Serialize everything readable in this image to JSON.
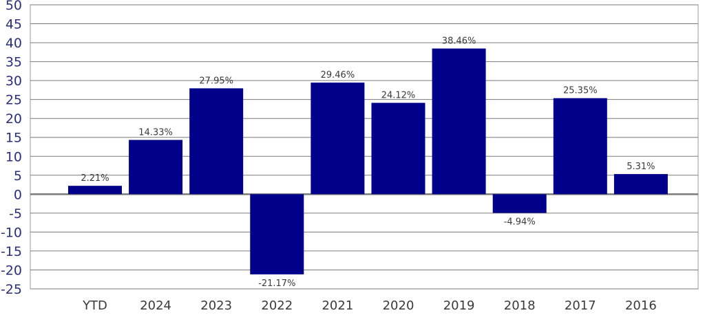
{
  "chart_data": {
    "type": "bar",
    "title": "",
    "xlabel": "",
    "ylabel": "",
    "categories": [
      "YTD",
      "2024",
      "2023",
      "2022",
      "2021",
      "2020",
      "2019",
      "2018",
      "2017",
      "2016"
    ],
    "values": [
      2.21,
      14.33,
      27.95,
      -21.17,
      29.46,
      24.12,
      38.46,
      -4.94,
      25.35,
      5.31
    ],
    "value_labels": [
      "2.21%",
      "14.33%",
      "27.95%",
      "-21.17%",
      "29.46%",
      "24.12%",
      "38.46%",
      "-4.94%",
      "25.35%",
      "5.31%"
    ],
    "ylim": [
      -25,
      50
    ],
    "y_ticks": [
      "50",
      "45",
      "40",
      "35",
      "30",
      "25",
      "20",
      "15",
      "10",
      "5",
      "0",
      "-5",
      "-10",
      "-15",
      "-20",
      "-25"
    ],
    "grid": true,
    "legend": "none",
    "colors": {
      "bar": "#00008b",
      "grid": "#7a7a7a",
      "ytick_text": "#2b2f7a",
      "xtick_text": "#3a3a3a"
    }
  }
}
